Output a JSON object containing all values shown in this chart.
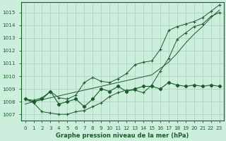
{
  "xlabel": "Graphe pression niveau de la mer (hPa)",
  "x_labels": [
    "0",
    "1",
    "2",
    "3",
    "4",
    "5",
    "6",
    "7",
    "8",
    "9",
    "10",
    "11",
    "12",
    "13",
    "14",
    "15",
    "16",
    "17",
    "18",
    "19",
    "20",
    "21",
    "22",
    "23"
  ],
  "ylim": [
    1006.5,
    1015.8
  ],
  "xlim": [
    -0.5,
    23.5
  ],
  "yticks": [
    1007,
    1008,
    1009,
    1010,
    1011,
    1012,
    1013,
    1014,
    1015
  ],
  "background_color": "#cceedd",
  "grid_color": "#aaccbb",
  "line_color": "#1a5c2a",
  "series_zigzag": [
    1008.2,
    1008.0,
    1008.2,
    1008.8,
    1007.8,
    1008.0,
    1008.2,
    1007.6,
    1008.2,
    1009.0,
    1008.8,
    1009.2,
    1008.8,
    1009.0,
    1009.2,
    1009.2,
    1009.0,
    1009.5,
    1009.3,
    1009.2,
    1009.3,
    1009.2,
    1009.3,
    1009.2
  ],
  "series_high": [
    1008.2,
    1008.1,
    1008.3,
    1008.8,
    1008.3,
    1008.2,
    1008.5,
    1009.5,
    1009.9,
    1009.6,
    1009.5,
    1009.8,
    1010.2,
    1010.9,
    1011.1,
    1011.2,
    1012.1,
    1013.6,
    1013.9,
    1014.1,
    1014.3,
    1014.6,
    1015.1,
    1015.6
  ],
  "series_low": [
    1008.2,
    1007.9,
    1007.2,
    1007.1,
    1007.0,
    1007.0,
    1007.2,
    1007.3,
    1007.6,
    1007.9,
    1008.4,
    1008.7,
    1008.9,
    1008.9,
    1008.7,
    1009.3,
    1010.4,
    1011.4,
    1012.9,
    1013.4,
    1013.9,
    1014.1,
    1014.7,
    1015.0
  ],
  "series_trend": [
    1007.8,
    1008.0,
    1008.15,
    1008.3,
    1008.45,
    1008.6,
    1008.75,
    1008.9,
    1009.05,
    1009.2,
    1009.35,
    1009.5,
    1009.65,
    1009.8,
    1009.95,
    1010.1,
    1010.6,
    1011.1,
    1011.8,
    1012.6,
    1013.3,
    1013.9,
    1014.6,
    1015.2
  ]
}
